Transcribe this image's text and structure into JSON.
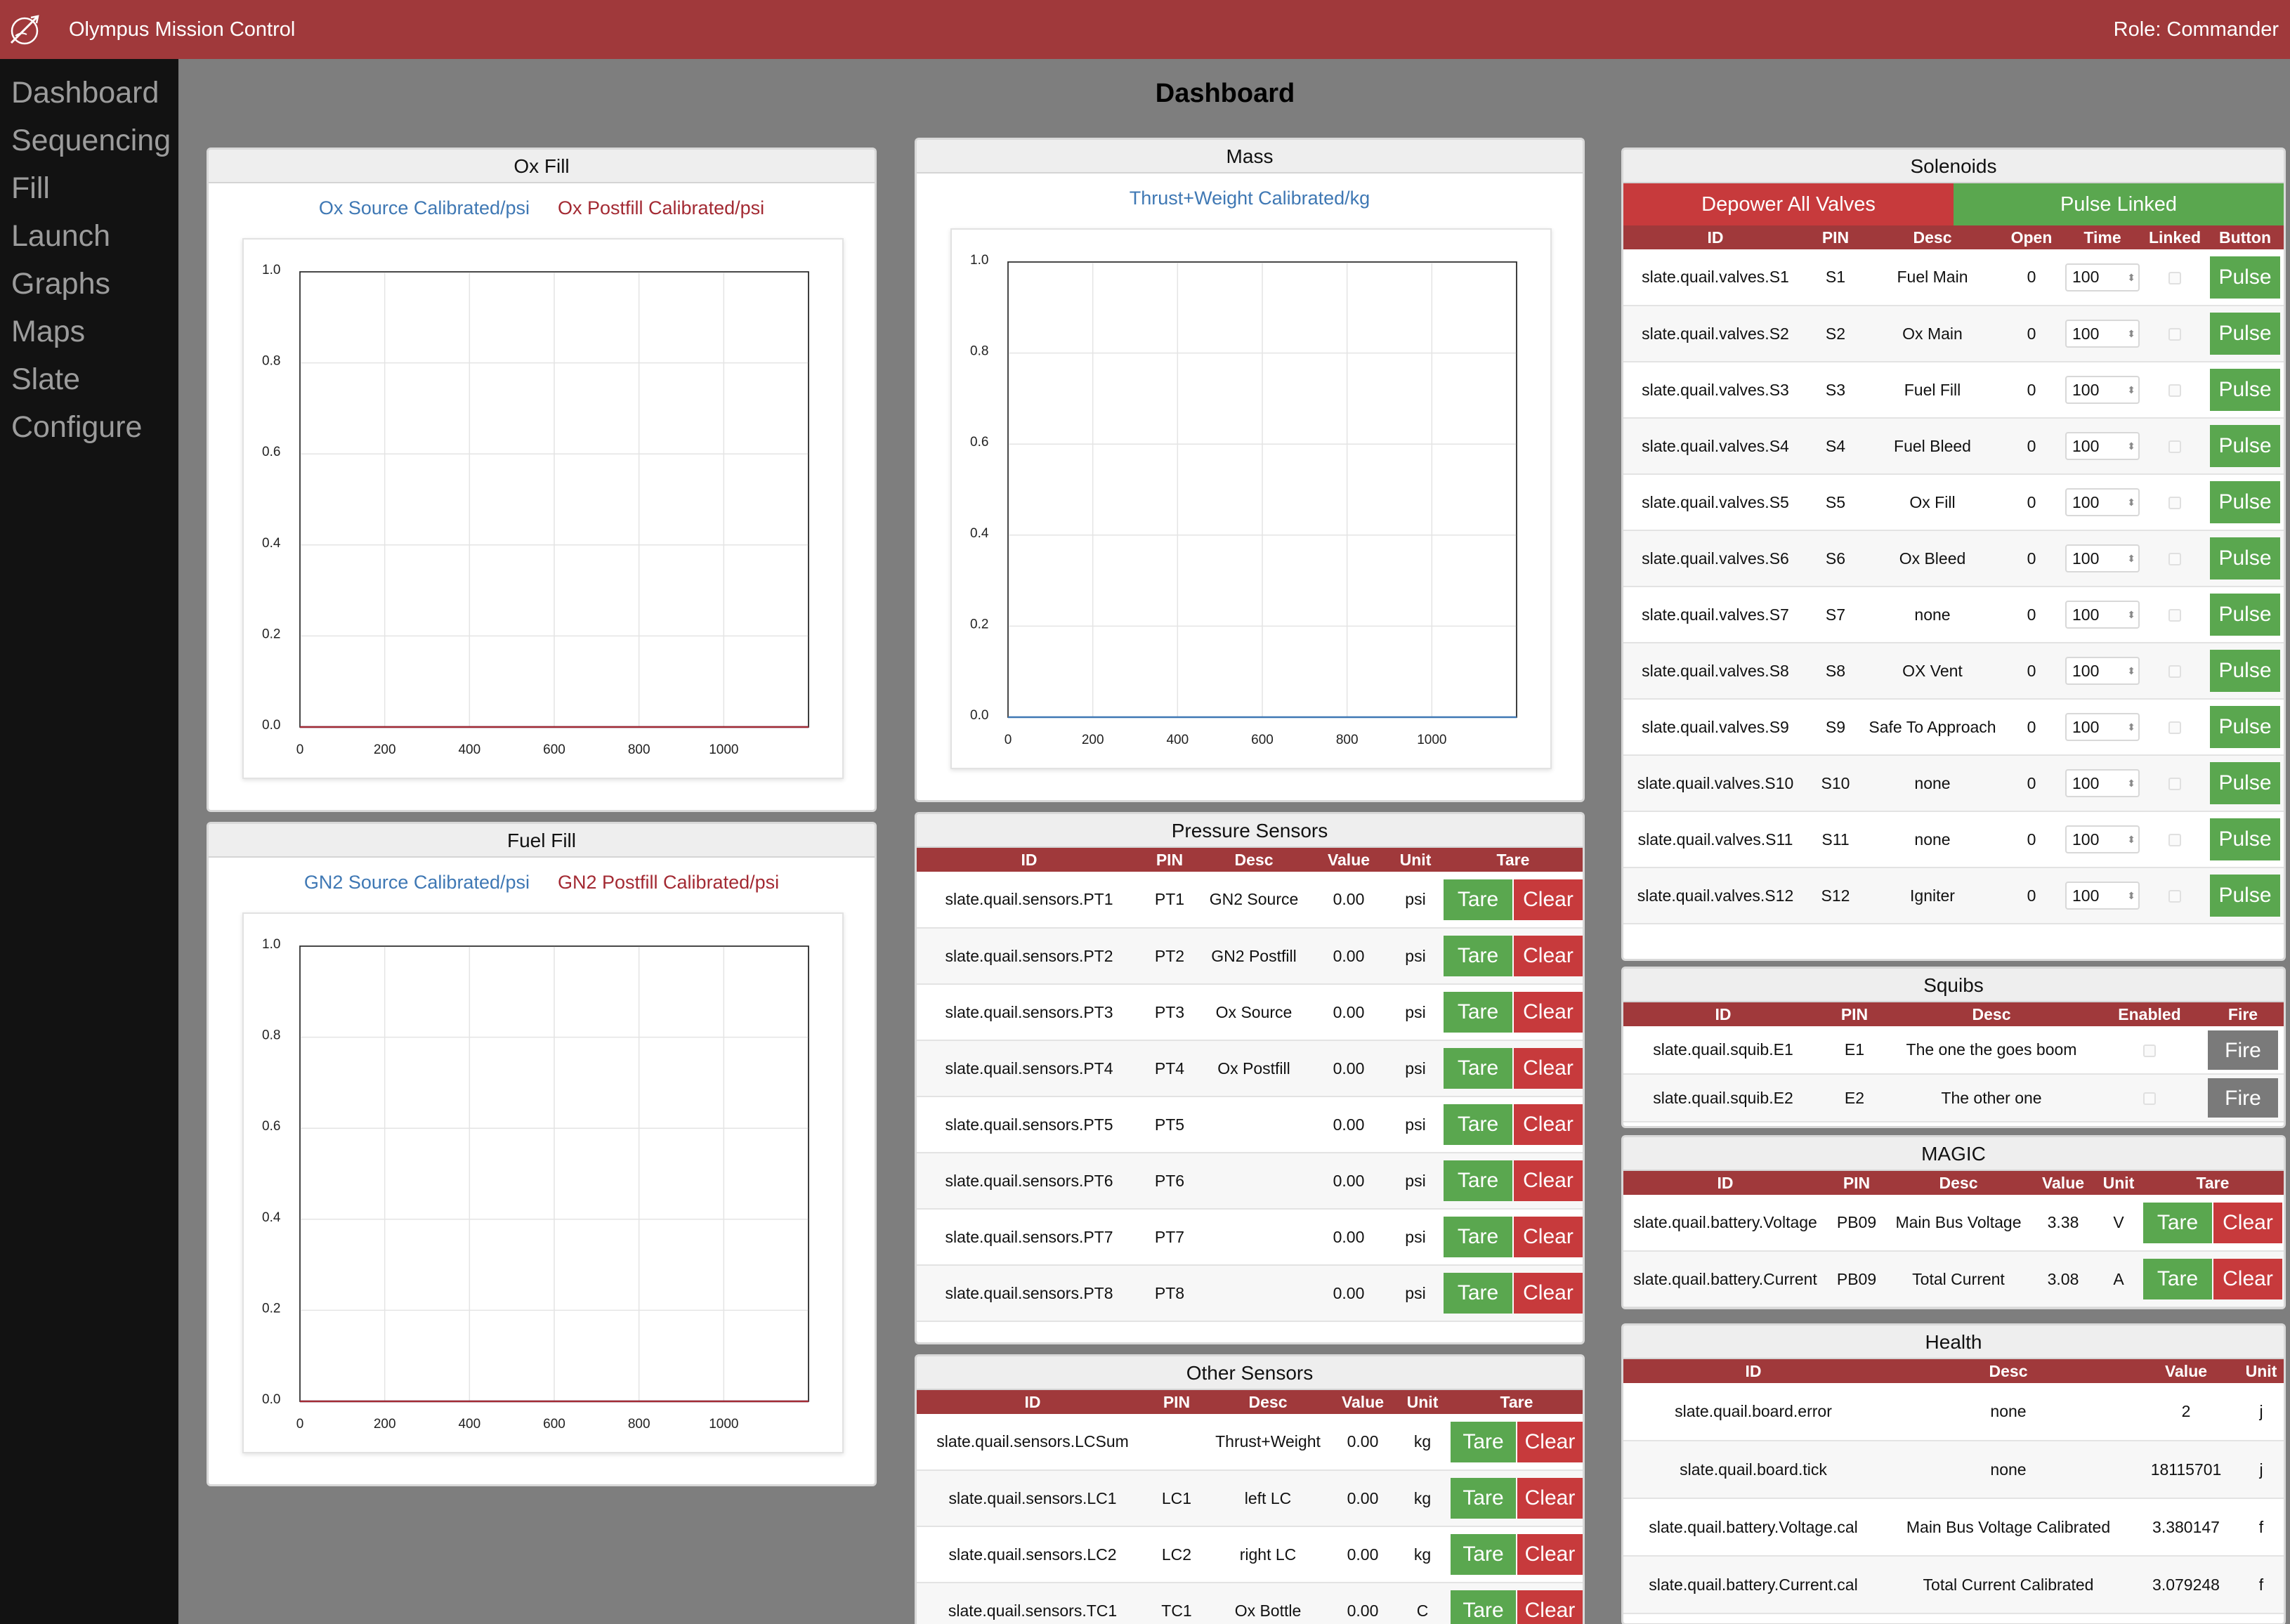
{
  "app": {
    "title": "Olympus Mission Control",
    "role": "Role: Commander"
  },
  "nav": [
    "Dashboard",
    "Sequencing",
    "Fill",
    "Launch",
    "Graphs",
    "Maps",
    "Slate",
    "Configure"
  ],
  "page_title": "Dashboard",
  "colors": {
    "accent": "#a0393b",
    "green": "#5aa74f",
    "red": "#c73a3c",
    "series_blue": "#3f78b4",
    "series_red": "#a32a33"
  },
  "ox_fill": {
    "title": "Ox Fill",
    "legend": [
      "Ox Source Calibrated/psi",
      "Ox Postfill Calibrated/psi"
    ]
  },
  "fuel_fill": {
    "title": "Fuel Fill",
    "legend": [
      "GN2 Source Calibrated/psi",
      "GN2 Postfill Calibrated/psi"
    ]
  },
  "mass": {
    "title": "Mass",
    "legend": [
      "Thrust+Weight Calibrated/kg"
    ]
  },
  "chart_data": [
    {
      "type": "line",
      "title": "Ox Fill",
      "x_ticks": [
        0,
        200,
        400,
        600,
        800,
        1000
      ],
      "y_ticks": [
        0.0,
        0.2,
        0.4,
        0.6,
        0.8,
        1.0
      ],
      "xlim": [
        0,
        1200
      ],
      "ylim": [
        0,
        1
      ],
      "grid": true,
      "legend_position": "top",
      "series": [
        {
          "name": "Ox Source Calibrated/psi",
          "x": [
            0,
            1200
          ],
          "y": [
            0,
            0
          ]
        },
        {
          "name": "Ox Postfill Calibrated/psi",
          "x": [
            0,
            1200
          ],
          "y": [
            0,
            0
          ]
        }
      ]
    },
    {
      "type": "line",
      "title": "Mass",
      "x_ticks": [
        0,
        200,
        400,
        600,
        800,
        1000
      ],
      "y_ticks": [
        0.0,
        0.2,
        0.4,
        0.6,
        0.8,
        1.0
      ],
      "xlim": [
        0,
        1200
      ],
      "ylim": [
        0,
        1
      ],
      "grid": true,
      "legend_position": "top",
      "series": [
        {
          "name": "Thrust+Weight Calibrated/kg",
          "x": [
            0,
            1200
          ],
          "y": [
            0,
            0
          ]
        }
      ]
    },
    {
      "type": "line",
      "title": "Fuel Fill",
      "x_ticks": [
        0,
        200,
        400,
        600,
        800,
        1000
      ],
      "y_ticks": [
        0.0,
        0.2,
        0.4,
        0.6,
        0.8,
        1.0
      ],
      "xlim": [
        0,
        1200
      ],
      "ylim": [
        0,
        1
      ],
      "grid": true,
      "legend_position": "top",
      "series": [
        {
          "name": "GN2 Source Calibrated/psi",
          "x": [
            0,
            1200
          ],
          "y": [
            0,
            0
          ]
        },
        {
          "name": "GN2 Postfill Calibrated/psi",
          "x": [
            0,
            1200
          ],
          "y": [
            0,
            0
          ]
        }
      ]
    }
  ],
  "pressure": {
    "title": "Pressure Sensors",
    "headers": [
      "ID",
      "PIN",
      "Desc",
      "Value",
      "Unit",
      "Tare"
    ],
    "tare_label": "Tare",
    "clear_label": "Clear",
    "rows": [
      [
        "slate.quail.sensors.PT1",
        "PT1",
        "GN2 Source",
        "0.00",
        "psi"
      ],
      [
        "slate.quail.sensors.PT2",
        "PT2",
        "GN2 Postfill",
        "0.00",
        "psi"
      ],
      [
        "slate.quail.sensors.PT3",
        "PT3",
        "Ox Source",
        "0.00",
        "psi"
      ],
      [
        "slate.quail.sensors.PT4",
        "PT4",
        "Ox Postfill",
        "0.00",
        "psi"
      ],
      [
        "slate.quail.sensors.PT5",
        "PT5",
        "",
        "0.00",
        "psi"
      ],
      [
        "slate.quail.sensors.PT6",
        "PT6",
        "",
        "0.00",
        "psi"
      ],
      [
        "slate.quail.sensors.PT7",
        "PT7",
        "",
        "0.00",
        "psi"
      ],
      [
        "slate.quail.sensors.PT8",
        "PT8",
        "",
        "0.00",
        "psi"
      ]
    ]
  },
  "other": {
    "title": "Other Sensors",
    "headers": [
      "ID",
      "PIN",
      "Desc",
      "Value",
      "Unit",
      "Tare"
    ],
    "tare_label": "Tare",
    "clear_label": "Clear",
    "rows": [
      [
        "slate.quail.sensors.LCSum",
        "",
        "Thrust+Weight",
        "0.00",
        "kg"
      ],
      [
        "slate.quail.sensors.LC1",
        "LC1",
        "left LC",
        "0.00",
        "kg"
      ],
      [
        "slate.quail.sensors.LC2",
        "LC2",
        "right LC",
        "0.00",
        "kg"
      ],
      [
        "slate.quail.sensors.TC1",
        "TC1",
        "Ox Bottle",
        "0.00",
        "C"
      ]
    ]
  },
  "solenoids": {
    "title": "Solenoids",
    "depower_label": "Depower All Valves",
    "pulse_linked_label": "Pulse Linked",
    "headers": [
      "ID",
      "PIN",
      "Desc",
      "Open",
      "Time",
      "Linked",
      "Button"
    ],
    "pulse_label": "Pulse",
    "rows": [
      [
        "slate.quail.valves.S1",
        "S1",
        "Fuel Main",
        "0",
        "100"
      ],
      [
        "slate.quail.valves.S2",
        "S2",
        "Ox Main",
        "0",
        "100"
      ],
      [
        "slate.quail.valves.S3",
        "S3",
        "Fuel Fill",
        "0",
        "100"
      ],
      [
        "slate.quail.valves.S4",
        "S4",
        "Fuel Bleed",
        "0",
        "100"
      ],
      [
        "slate.quail.valves.S5",
        "S5",
        "Ox Fill",
        "0",
        "100"
      ],
      [
        "slate.quail.valves.S6",
        "S6",
        "Ox Bleed",
        "0",
        "100"
      ],
      [
        "slate.quail.valves.S7",
        "S7",
        "none",
        "0",
        "100"
      ],
      [
        "slate.quail.valves.S8",
        "S8",
        "OX Vent",
        "0",
        "100"
      ],
      [
        "slate.quail.valves.S9",
        "S9",
        "Safe To Approach",
        "0",
        "100"
      ],
      [
        "slate.quail.valves.S10",
        "S10",
        "none",
        "0",
        "100"
      ],
      [
        "slate.quail.valves.S11",
        "S11",
        "none",
        "0",
        "100"
      ],
      [
        "slate.quail.valves.S12",
        "S12",
        "Igniter",
        "0",
        "100"
      ]
    ]
  },
  "squibs": {
    "title": "Squibs",
    "headers": [
      "ID",
      "PIN",
      "Desc",
      "Enabled",
      "Fire"
    ],
    "fire_label": "Fire",
    "rows": [
      [
        "slate.quail.squib.E1",
        "E1",
        "The one the goes boom"
      ],
      [
        "slate.quail.squib.E2",
        "E2",
        "The other one"
      ]
    ]
  },
  "magic": {
    "title": "MAGIC",
    "headers": [
      "ID",
      "PIN",
      "Desc",
      "Value",
      "Unit",
      "Tare"
    ],
    "tare_label": "Tare",
    "clear_label": "Clear",
    "rows": [
      [
        "slate.quail.battery.Voltage",
        "PB09",
        "Main Bus Voltage",
        "3.38",
        "V"
      ],
      [
        "slate.quail.battery.Current",
        "PB09",
        "Total Current",
        "3.08",
        "A"
      ]
    ]
  },
  "health": {
    "title": "Health",
    "headers": [
      "ID",
      "Desc",
      "Value",
      "Unit"
    ],
    "rows": [
      [
        "slate.quail.board.error",
        "none",
        "2",
        "j"
      ],
      [
        "slate.quail.board.tick",
        "none",
        "18115701",
        "j"
      ],
      [
        "slate.quail.battery.Voltage.cal",
        "Main Bus Voltage Calibrated",
        "3.380147",
        "f"
      ],
      [
        "slate.quail.battery.Current.cal",
        "Total Current Calibrated",
        "3.079248",
        "f"
      ]
    ]
  }
}
